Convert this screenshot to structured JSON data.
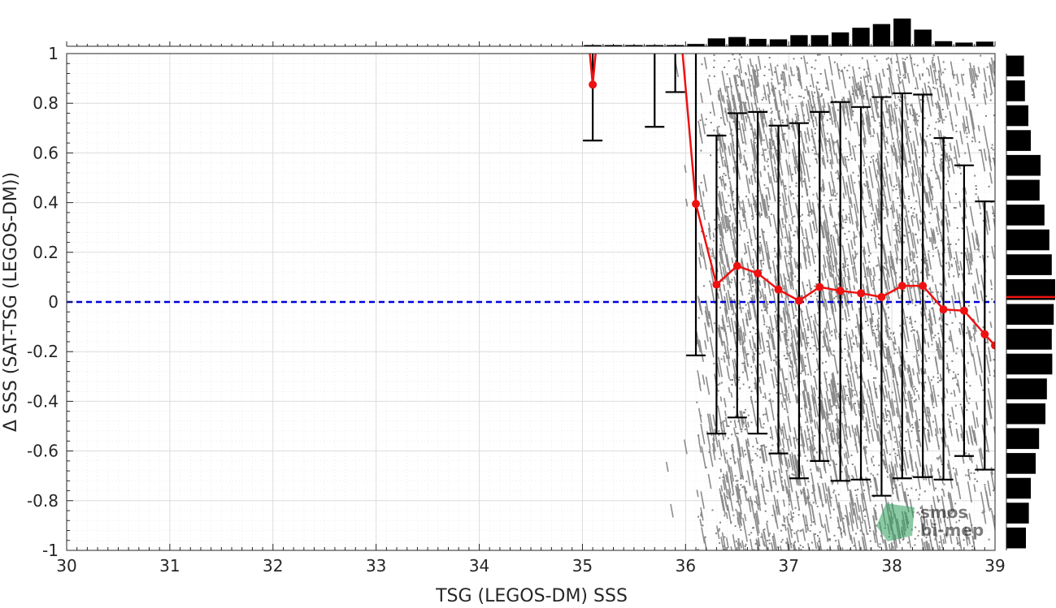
{
  "chart_data": {
    "type": "scatter",
    "xlabel": "TSG (LEGOS-DM) SSS",
    "ylabel": "Δ SSS (SAT-TSG (LEGOS-DM))",
    "xlim": [
      30,
      39
    ],
    "ylim": [
      -1,
      1
    ],
    "x_ticks": [
      "30",
      "31",
      "32",
      "33",
      "34",
      "35",
      "36",
      "37",
      "38",
      "39"
    ],
    "y_ticks": [
      "-1",
      "-0.8",
      "-0.6",
      "-0.4",
      "-0.2",
      "0",
      "0.2",
      "0.4",
      "0.6",
      "0.8",
      "1"
    ],
    "grid": true,
    "minor_grid": true,
    "reference_line": {
      "y": 0,
      "color": "#0000dd",
      "style": "dashed"
    },
    "scatter_cloud": {
      "color": "#808080",
      "x_range": [
        36.1,
        39.0
      ],
      "y_range": [
        -1,
        1
      ],
      "description_points": "dense grey point cloud of individual differences"
    },
    "binned_stats": {
      "color_mean": "#ee1111",
      "color_bars": "#000000",
      "points": [
        {
          "x": 35.1,
          "mean": 0.875,
          "low": 0.65,
          "high": 1.1
        },
        {
          "x": 35.7,
          "mean": null,
          "low": 0.705,
          "high": 1.1
        },
        {
          "x": 35.9,
          "mean": null,
          "low": 0.845,
          "high": 1.1
        },
        {
          "x": 36.1,
          "mean": 0.395,
          "low": -0.215,
          "high": 1.01
        },
        {
          "x": 36.3,
          "mean": 0.07,
          "low": -0.53,
          "high": 0.67
        },
        {
          "x": 36.5,
          "mean": 0.145,
          "low": -0.465,
          "high": 0.76
        },
        {
          "x": 36.7,
          "mean": 0.115,
          "low": -0.53,
          "high": 0.765
        },
        {
          "x": 36.9,
          "mean": 0.05,
          "low": -0.61,
          "high": 0.71
        },
        {
          "x": 37.1,
          "mean": 0.005,
          "low": -0.71,
          "high": 0.72
        },
        {
          "x": 37.3,
          "mean": 0.06,
          "low": -0.64,
          "high": 0.765
        },
        {
          "x": 37.5,
          "mean": 0.045,
          "low": -0.72,
          "high": 0.805
        },
        {
          "x": 37.7,
          "mean": 0.035,
          "low": -0.715,
          "high": 0.785
        },
        {
          "x": 37.9,
          "mean": 0.02,
          "low": -0.78,
          "high": 0.825
        },
        {
          "x": 38.1,
          "mean": 0.065,
          "low": -0.71,
          "high": 0.84
        },
        {
          "x": 38.3,
          "mean": 0.065,
          "low": -0.705,
          "high": 0.835
        },
        {
          "x": 38.5,
          "mean": -0.03,
          "low": -0.715,
          "high": 0.66
        },
        {
          "x": 38.7,
          "mean": -0.035,
          "low": -0.62,
          "high": 0.55
        },
        {
          "x": 38.9,
          "mean": -0.13,
          "low": -0.675,
          "high": 0.405
        },
        {
          "x": 39.0,
          "mean": -0.175,
          "low": null,
          "high": null
        }
      ],
      "mean_line_offscale_start": [
        {
          "x": 35.05,
          "mean": 1.1
        },
        {
          "x": 35.15,
          "mean": 1.1
        },
        {
          "x": 35.95,
          "mean": 1.1
        }
      ]
    },
    "top_histogram": {
      "bin_edges_start": 35.0,
      "bin_width": 0.2,
      "relative_heights": [
        0.02,
        0.02,
        0.02,
        0.02,
        0.02,
        0.05,
        0.17,
        0.2,
        0.16,
        0.15,
        0.24,
        0.24,
        0.3,
        0.4,
        0.48,
        0.6,
        0.36,
        0.11,
        0.08,
        0.1
      ]
    },
    "right_histogram": {
      "bin_width": 0.1,
      "relative_widths_top_to_bottom": [
        0.36,
        0.38,
        0.45,
        0.5,
        0.7,
        0.68,
        0.78,
        0.88,
        0.93,
        1.0,
        0.97,
        0.93,
        0.94,
        0.83,
        0.8,
        0.67,
        0.6,
        0.5,
        0.46,
        0.4,
        0.36
      ],
      "mean_marker_y": 0.02,
      "marker_color": "#ee1111"
    },
    "watermark": {
      "lines": [
        "smos",
        "bi-mep"
      ],
      "color": "#2e9e5b"
    }
  }
}
